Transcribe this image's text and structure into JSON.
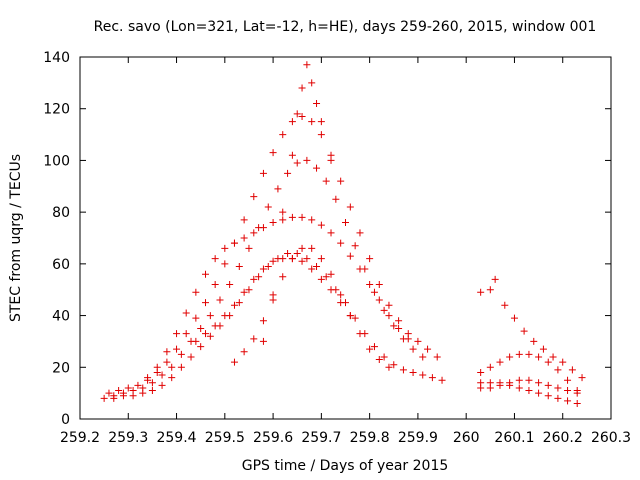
{
  "chart_data": {
    "type": "scatter",
    "title": "Rec. savo (Lon=321, Lat=-12, h=HE), days 259-260, 2015, window 001",
    "xlabel": "GPS time / Days of year 2015",
    "ylabel": "STEC from uqrg / TECUs",
    "xlim": [
      259.2,
      260.3
    ],
    "ylim": [
      0,
      140
    ],
    "xticks": [
      259.2,
      259.3,
      259.4,
      259.5,
      259.6,
      259.7,
      259.8,
      259.9,
      260.0,
      260.1,
      260.2,
      260.3
    ],
    "xtick_labels": [
      "259.2",
      "259.3",
      "259.4",
      "259.5",
      "259.6",
      "259.7",
      "259.8",
      "259.9",
      "260",
      "260.1",
      "260.2",
      "260.3"
    ],
    "yticks": [
      0,
      20,
      40,
      60,
      80,
      100,
      120,
      140
    ],
    "ytick_labels": [
      "0",
      "20",
      "40",
      "60",
      "80",
      "100",
      "120",
      "140"
    ],
    "grid": false,
    "legend": null,
    "marker": "+",
    "color": "#e00000",
    "series": [
      {
        "values": [
          [
            259.25,
            8
          ],
          [
            259.27,
            8
          ],
          [
            259.29,
            9
          ],
          [
            259.31,
            9
          ],
          [
            259.33,
            10
          ],
          [
            259.35,
            11
          ],
          [
            259.37,
            13
          ],
          [
            259.39,
            16
          ],
          [
            259.41,
            20
          ],
          [
            259.43,
            24
          ],
          [
            259.45,
            28
          ],
          [
            259.47,
            32
          ],
          [
            259.49,
            36
          ],
          [
            259.51,
            40
          ],
          [
            259.53,
            45
          ],
          [
            259.55,
            50
          ],
          [
            259.57,
            55
          ],
          [
            259.59,
            59
          ],
          [
            259.61,
            62
          ],
          [
            259.63,
            64
          ],
          [
            259.65,
            64
          ],
          [
            259.67,
            62
          ],
          [
            259.69,
            59
          ],
          [
            259.71,
            55
          ],
          [
            259.73,
            50
          ],
          [
            259.75,
            45
          ],
          [
            259.77,
            39
          ],
          [
            259.79,
            33
          ],
          [
            259.81,
            28
          ],
          [
            259.83,
            24
          ],
          [
            259.85,
            21
          ],
          [
            259.87,
            19
          ],
          [
            259.89,
            18
          ],
          [
            259.91,
            17
          ],
          [
            259.93,
            16
          ],
          [
            259.95,
            15
          ]
        ]
      },
      {
        "values": [
          [
            259.26,
            10
          ],
          [
            259.28,
            11
          ],
          [
            259.3,
            12
          ],
          [
            259.32,
            13
          ],
          [
            259.34,
            15
          ],
          [
            259.36,
            18
          ],
          [
            259.38,
            22
          ],
          [
            259.4,
            27
          ],
          [
            259.42,
            33
          ],
          [
            259.44,
            39
          ],
          [
            259.46,
            45
          ],
          [
            259.48,
            52
          ],
          [
            259.5,
            60
          ],
          [
            259.52,
            68
          ],
          [
            259.54,
            77
          ],
          [
            259.56,
            86
          ],
          [
            259.58,
            95
          ],
          [
            259.6,
            103
          ],
          [
            259.62,
            110
          ],
          [
            259.64,
            115
          ],
          [
            259.66,
            117
          ],
          [
            259.68,
            115
          ],
          [
            259.7,
            110
          ],
          [
            259.72,
            102
          ],
          [
            259.74,
            92
          ],
          [
            259.76,
            82
          ],
          [
            259.78,
            72
          ],
          [
            259.8,
            62
          ],
          [
            259.82,
            52
          ],
          [
            259.84,
            44
          ],
          [
            259.86,
            38
          ],
          [
            259.88,
            33
          ],
          [
            259.9,
            30
          ],
          [
            259.92,
            27
          ],
          [
            259.94,
            24
          ]
        ]
      },
      {
        "values": [
          [
            259.27,
            9
          ],
          [
            259.29,
            10
          ],
          [
            259.31,
            11
          ],
          [
            259.33,
            12
          ],
          [
            259.35,
            14
          ],
          [
            259.37,
            17
          ],
          [
            259.39,
            20
          ],
          [
            259.41,
            25
          ],
          [
            259.43,
            30
          ],
          [
            259.45,
            35
          ],
          [
            259.47,
            40
          ],
          [
            259.49,
            46
          ],
          [
            259.51,
            52
          ],
          [
            259.53,
            59
          ],
          [
            259.55,
            66
          ],
          [
            259.57,
            74
          ],
          [
            259.59,
            82
          ],
          [
            259.61,
            89
          ],
          [
            259.63,
            95
          ],
          [
            259.65,
            99
          ],
          [
            259.67,
            100
          ],
          [
            259.69,
            97
          ],
          [
            259.71,
            92
          ],
          [
            259.73,
            85
          ],
          [
            259.75,
            76
          ],
          [
            259.77,
            67
          ],
          [
            259.79,
            58
          ],
          [
            259.81,
            49
          ],
          [
            259.83,
            42
          ],
          [
            259.85,
            36
          ],
          [
            259.87,
            31
          ],
          [
            259.89,
            27
          ],
          [
            259.91,
            24
          ]
        ]
      },
      {
        "values": [
          [
            259.34,
            16
          ],
          [
            259.36,
            20
          ],
          [
            259.38,
            26
          ],
          [
            259.4,
            33
          ],
          [
            259.42,
            41
          ],
          [
            259.44,
            49
          ],
          [
            259.46,
            56
          ],
          [
            259.48,
            62
          ],
          [
            259.5,
            66
          ],
          [
            259.52,
            68
          ],
          [
            259.54,
            70
          ],
          [
            259.56,
            72
          ],
          [
            259.58,
            74
          ],
          [
            259.6,
            76
          ],
          [
            259.62,
            77
          ],
          [
            259.64,
            78
          ],
          [
            259.66,
            78
          ],
          [
            259.68,
            77
          ],
          [
            259.7,
            75
          ],
          [
            259.72,
            72
          ],
          [
            259.74,
            68
          ],
          [
            259.76,
            63
          ],
          [
            259.78,
            58
          ],
          [
            259.8,
            52
          ],
          [
            259.82,
            46
          ],
          [
            259.84,
            40
          ],
          [
            259.86,
            35
          ],
          [
            259.88,
            31
          ]
        ]
      },
      {
        "values": [
          [
            259.44,
            30
          ],
          [
            259.46,
            33
          ],
          [
            259.48,
            36
          ],
          [
            259.5,
            40
          ],
          [
            259.52,
            44
          ],
          [
            259.54,
            49
          ],
          [
            259.56,
            54
          ],
          [
            259.58,
            58
          ],
          [
            259.6,
            61
          ],
          [
            259.62,
            62
          ],
          [
            259.64,
            62
          ],
          [
            259.66,
            61
          ],
          [
            259.68,
            58
          ],
          [
            259.7,
            54
          ],
          [
            259.72,
            50
          ],
          [
            259.74,
            45
          ],
          [
            259.76,
            40
          ]
        ]
      },
      {
        "values": [
          [
            259.52,
            22
          ],
          [
            259.54,
            26
          ],
          [
            259.56,
            31
          ],
          [
            259.58,
            38
          ],
          [
            259.6,
            46
          ],
          [
            259.62,
            55
          ],
          [
            259.64,
            62
          ],
          [
            259.66,
            66
          ],
          [
            259.68,
            66
          ],
          [
            259.7,
            62
          ],
          [
            259.72,
            56
          ],
          [
            259.74,
            48
          ],
          [
            259.76,
            40
          ],
          [
            259.78,
            33
          ],
          [
            259.8,
            27
          ],
          [
            259.82,
            23
          ],
          [
            259.84,
            20
          ]
        ]
      },
      {
        "values": [
          [
            259.58,
            30
          ],
          [
            259.6,
            48
          ],
          [
            259.62,
            80
          ],
          [
            259.64,
            102
          ],
          [
            259.65,
            118
          ],
          [
            259.66,
            128
          ],
          [
            259.67,
            137
          ],
          [
            259.68,
            130
          ],
          [
            259.69,
            122
          ],
          [
            259.7,
            115
          ],
          [
            259.72,
            100
          ]
        ]
      },
      {
        "values": [
          [
            260.03,
            14
          ],
          [
            260.05,
            14
          ],
          [
            260.07,
            14
          ],
          [
            260.09,
            14
          ],
          [
            260.11,
            15
          ],
          [
            260.13,
            15
          ],
          [
            260.15,
            14
          ],
          [
            260.17,
            13
          ],
          [
            260.19,
            12
          ],
          [
            260.21,
            11
          ],
          [
            260.23,
            10
          ]
        ]
      },
      {
        "values": [
          [
            260.03,
            49
          ],
          [
            260.05,
            50
          ],
          [
            260.06,
            54
          ],
          [
            260.08,
            44
          ],
          [
            260.1,
            39
          ],
          [
            260.12,
            34
          ],
          [
            260.14,
            30
          ],
          [
            260.16,
            27
          ],
          [
            260.18,
            24
          ],
          [
            260.2,
            22
          ],
          [
            260.22,
            19
          ],
          [
            260.24,
            16
          ]
        ]
      },
      {
        "values": [
          [
            260.03,
            18
          ],
          [
            260.05,
            20
          ],
          [
            260.07,
            22
          ],
          [
            260.09,
            24
          ],
          [
            260.11,
            25
          ],
          [
            260.13,
            25
          ],
          [
            260.15,
            24
          ],
          [
            260.17,
            22
          ],
          [
            260.19,
            19
          ],
          [
            260.21,
            15
          ],
          [
            260.23,
            11
          ]
        ]
      },
      {
        "values": [
          [
            260.03,
            12
          ],
          [
            260.05,
            12
          ],
          [
            260.07,
            13
          ],
          [
            260.09,
            13
          ],
          [
            260.11,
            12
          ],
          [
            260.13,
            11
          ],
          [
            260.15,
            10
          ],
          [
            260.17,
            9
          ],
          [
            260.19,
            8
          ],
          [
            260.21,
            7
          ],
          [
            260.23,
            6
          ]
        ]
      }
    ]
  }
}
